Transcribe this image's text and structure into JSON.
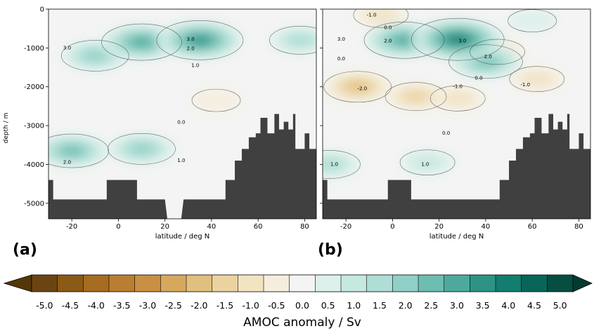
{
  "chart_data": [
    {
      "type": "heatmap",
      "panel_label": "(a)",
      "xlabel": "latitude / deg N",
      "ylabel": "depth / m",
      "xlim": [
        -30,
        85
      ],
      "ylim": [
        -5400,
        0
      ],
      "xticks": [
        -20,
        0,
        20,
        40,
        60,
        80
      ],
      "yticks": [
        0,
        -1000,
        -2000,
        -3000,
        -4000,
        -5000
      ],
      "contour_labels": [
        {
          "text": "3.0",
          "x": -22,
          "y": -1000
        },
        {
          "text": "3.0",
          "x": 31,
          "y": -780
        },
        {
          "text": "2.0",
          "x": 31,
          "y": -1020
        },
        {
          "text": "1.0",
          "x": 33,
          "y": -1450
        },
        {
          "text": "0.0",
          "x": 27,
          "y": -2920
        },
        {
          "text": "2.0",
          "x": -22,
          "y": -3950
        },
        {
          "text": "1.0",
          "x": 27,
          "y": -3900
        }
      ],
      "anomaly_blobs": [
        {
          "lat": 10,
          "depth": -850,
          "value": 3.0
        },
        {
          "lat": -10,
          "depth": -1200,
          "value": 2.0
        },
        {
          "lat": 35,
          "depth": -800,
          "value": 3.5
        },
        {
          "lat": -20,
          "depth": -3650,
          "value": 2.5
        },
        {
          "lat": 10,
          "depth": -3600,
          "value": 2.0
        },
        {
          "lat": 78,
          "depth": -800,
          "value": 1.5
        },
        {
          "lat": 42,
          "depth": -2350,
          "value": -0.5
        }
      ],
      "bathymetry": [
        [
          -30,
          -4400
        ],
        [
          -28,
          -4400
        ],
        [
          -28,
          -4900
        ],
        [
          -5,
          -4900
        ],
        [
          -5,
          -4400
        ],
        [
          8,
          -4400
        ],
        [
          8,
          -4900
        ],
        [
          20,
          -4900
        ],
        [
          21,
          -5400
        ],
        [
          27,
          -5400
        ],
        [
          28,
          -4900
        ],
        [
          46,
          -4900
        ],
        [
          46,
          -4400
        ],
        [
          50,
          -4400
        ],
        [
          50,
          -3900
        ],
        [
          53,
          -3900
        ],
        [
          53,
          -3600
        ],
        [
          56,
          -3600
        ],
        [
          56,
          -3300
        ],
        [
          59,
          -3300
        ],
        [
          59,
          -3200
        ],
        [
          61,
          -3200
        ],
        [
          61,
          -2800
        ],
        [
          64,
          -2800
        ],
        [
          64,
          -3200
        ],
        [
          67,
          -3200
        ],
        [
          67,
          -2700
        ],
        [
          69,
          -2700
        ],
        [
          69,
          -3100
        ],
        [
          71,
          -3100
        ],
        [
          71,
          -2900
        ],
        [
          73,
          -2900
        ],
        [
          73,
          -3100
        ],
        [
          75,
          -3100
        ],
        [
          75,
          -2700
        ],
        [
          76,
          -2700
        ],
        [
          76,
          -3600
        ],
        [
          80,
          -3600
        ],
        [
          80,
          -3200
        ],
        [
          82,
          -3200
        ],
        [
          82,
          -3600
        ],
        [
          85,
          -3600
        ]
      ]
    },
    {
      "type": "heatmap",
      "panel_label": "(b)",
      "xlabel": "latitude / deg N",
      "ylabel": "",
      "xlim": [
        -30,
        85
      ],
      "ylim": [
        -5400,
        0
      ],
      "xticks": [
        -20,
        0,
        20,
        40,
        60,
        80
      ],
      "yticks": [
        0,
        -1000,
        -2000,
        -3000,
        -4000,
        -5000
      ],
      "contour_labels": [
        {
          "text": "-1.0",
          "x": -9,
          "y": -150
        },
        {
          "text": "0.0",
          "x": -2,
          "y": -480
        },
        {
          "text": "3.0",
          "x": -22,
          "y": -780
        },
        {
          "text": "2.0",
          "x": -2,
          "y": -820
        },
        {
          "text": "3.0",
          "x": 30,
          "y": -820
        },
        {
          "text": "0.0",
          "x": -22,
          "y": -1280
        },
        {
          "text": "2.0",
          "x": 41,
          "y": -1230
        },
        {
          "text": "0.0",
          "x": 37,
          "y": -1780
        },
        {
          "text": "-1.0",
          "x": 57,
          "y": -1950
        },
        {
          "text": "-1.0",
          "x": 28,
          "y": -2000
        },
        {
          "text": "-2.0",
          "x": -13,
          "y": -2050
        },
        {
          "text": "0.0",
          "x": 23,
          "y": -3200
        },
        {
          "text": "1.0",
          "x": -25,
          "y": -4000
        },
        {
          "text": "1.0",
          "x": 14,
          "y": -4000
        }
      ],
      "anomaly_blobs": [
        {
          "lat": 5,
          "depth": -800,
          "value": 3.0
        },
        {
          "lat": 28,
          "depth": -780,
          "value": 4.0
        },
        {
          "lat": 40,
          "depth": -1350,
          "value": 2.5
        },
        {
          "lat": -15,
          "depth": -2000,
          "value": -2.0
        },
        {
          "lat": 10,
          "depth": -2250,
          "value": -1.5
        },
        {
          "lat": 28,
          "depth": -2300,
          "value": -1.0
        },
        {
          "lat": 45,
          "depth": -1100,
          "value": -1.0
        },
        {
          "lat": 62,
          "depth": -1800,
          "value": -1.0
        },
        {
          "lat": -5,
          "depth": -150,
          "value": -1.0
        },
        {
          "lat": 15,
          "depth": -3950,
          "value": 1.0
        },
        {
          "lat": -27,
          "depth": -4000,
          "value": 1.5
        },
        {
          "lat": 60,
          "depth": -300,
          "value": 0.5
        }
      ],
      "bathymetry": [
        [
          -30,
          -4400
        ],
        [
          -28,
          -4400
        ],
        [
          -28,
          -4900
        ],
        [
          -2,
          -4900
        ],
        [
          -2,
          -4400
        ],
        [
          8,
          -4400
        ],
        [
          8,
          -4900
        ],
        [
          46,
          -4900
        ],
        [
          46,
          -4400
        ],
        [
          50,
          -4400
        ],
        [
          50,
          -3900
        ],
        [
          53,
          -3900
        ],
        [
          53,
          -3600
        ],
        [
          56,
          -3600
        ],
        [
          56,
          -3300
        ],
        [
          59,
          -3300
        ],
        [
          59,
          -3200
        ],
        [
          61,
          -3200
        ],
        [
          61,
          -2800
        ],
        [
          64,
          -2800
        ],
        [
          64,
          -3200
        ],
        [
          67,
          -3200
        ],
        [
          67,
          -2700
        ],
        [
          69,
          -2700
        ],
        [
          69,
          -3100
        ],
        [
          71,
          -3100
        ],
        [
          71,
          -2900
        ],
        [
          73,
          -2900
        ],
        [
          73,
          -3100
        ],
        [
          75,
          -3100
        ],
        [
          75,
          -2700
        ],
        [
          76,
          -2700
        ],
        [
          76,
          -3600
        ],
        [
          80,
          -3600
        ],
        [
          80,
          -3200
        ],
        [
          82,
          -3200
        ],
        [
          82,
          -3600
        ],
        [
          85,
          -3600
        ]
      ]
    }
  ],
  "colorbar": {
    "label": "AMOC anomaly / Sv",
    "ticks": [
      "-5.0",
      "-4.5",
      "-4.0",
      "-3.5",
      "-3.0",
      "-2.5",
      "-2.0",
      "-1.5",
      "-1.0",
      "-0.5",
      "0.0",
      "0.5",
      "1.0",
      "1.5",
      "2.0",
      "2.5",
      "3.0",
      "3.5",
      "4.0",
      "4.5",
      "5.0"
    ],
    "colors": [
      "#6b4511",
      "#8a5a16",
      "#a66c20",
      "#ba7e32",
      "#c98f42",
      "#d6a85e",
      "#e1bf7f",
      "#ebd3a1",
      "#f2e3c3",
      "#f6eedd",
      "#f3f4f3",
      "#dcf0ec",
      "#c5e8e1",
      "#aeded5",
      "#90d0c6",
      "#6dbdb1",
      "#4ea99d",
      "#2d9385",
      "#137d6f",
      "#086658",
      "#044f42"
    ],
    "under_color": "#543709",
    "over_color": "#033b30"
  },
  "bathymetry_color": "#404040"
}
